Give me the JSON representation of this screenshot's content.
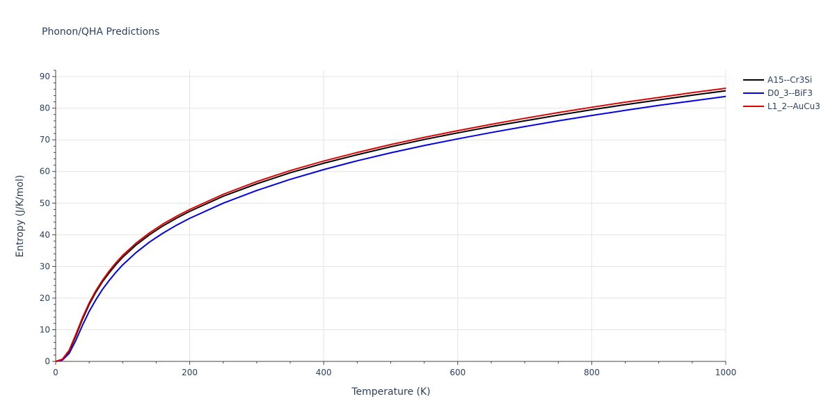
{
  "chart_data": {
    "type": "line",
    "title": "Phonon/QHA Predictions",
    "xlabel": "Temperature (K)",
    "ylabel": "Entropy (J/K/mol)",
    "xlim": [
      0,
      1000
    ],
    "ylim": [
      0,
      92
    ],
    "x_ticks": [
      0,
      200,
      400,
      600,
      800,
      1000
    ],
    "y_ticks": [
      0,
      10,
      20,
      30,
      40,
      50,
      60,
      70,
      80,
      90
    ],
    "x_tick_labels": [
      "0",
      "200",
      "400",
      "600",
      "800",
      "1000"
    ],
    "y_tick_labels": [
      "0",
      "10",
      "20",
      "30",
      "40",
      "50",
      "60",
      "70",
      "80",
      "90"
    ],
    "grid": true,
    "legend_position": "top-right",
    "series": [
      {
        "name": "A15--Cr3Si",
        "color": "#000000",
        "x": [
          0,
          10,
          20,
          30,
          40,
          50,
          60,
          70,
          80,
          90,
          100,
          120,
          140,
          160,
          180,
          200,
          250,
          300,
          350,
          400,
          450,
          500,
          550,
          600,
          650,
          700,
          750,
          800,
          850,
          900,
          950,
          1000
        ],
        "y": [
          0,
          0.6,
          3.2,
          8.0,
          13.3,
          18.0,
          21.9,
          25.2,
          28.0,
          30.6,
          32.9,
          36.8,
          40.0,
          42.8,
          45.2,
          47.4,
          52.2,
          56.1,
          59.6,
          62.6,
          65.3,
          67.8,
          70.1,
          72.2,
          74.2,
          76.0,
          77.8,
          79.5,
          81.1,
          82.6,
          84.1,
          85.5
        ]
      },
      {
        "name": "D0_3--BiF3",
        "color": "#0000ee",
        "x": [
          0,
          10,
          20,
          30,
          40,
          50,
          60,
          70,
          80,
          90,
          100,
          120,
          140,
          160,
          180,
          200,
          250,
          300,
          350,
          400,
          450,
          500,
          550,
          600,
          650,
          700,
          750,
          800,
          850,
          900,
          950,
          1000
        ],
        "y": [
          0,
          0.4,
          2.5,
          6.6,
          11.4,
          15.8,
          19.5,
          22.8,
          25.6,
          28.2,
          30.5,
          34.4,
          37.7,
          40.5,
          43.0,
          45.2,
          50.0,
          54.0,
          57.5,
          60.6,
          63.4,
          65.9,
          68.2,
          70.3,
          72.3,
          74.2,
          76.0,
          77.7,
          79.3,
          80.9,
          82.3,
          83.7
        ]
      },
      {
        "name": "L1_2--AuCu3",
        "color": "#e00000",
        "x": [
          0,
          10,
          20,
          30,
          40,
          50,
          60,
          70,
          80,
          90,
          100,
          120,
          140,
          160,
          180,
          200,
          250,
          300,
          350,
          400,
          450,
          500,
          550,
          600,
          650,
          700,
          750,
          800,
          850,
          900,
          950,
          1000
        ],
        "y": [
          0,
          0.7,
          3.5,
          8.5,
          13.8,
          18.5,
          22.4,
          25.7,
          28.6,
          31.2,
          33.5,
          37.4,
          40.6,
          43.4,
          45.8,
          48.0,
          52.8,
          56.8,
          60.3,
          63.3,
          66.0,
          68.5,
          70.8,
          72.9,
          74.9,
          76.8,
          78.6,
          80.3,
          81.9,
          83.4,
          84.9,
          86.3
        ]
      }
    ]
  }
}
